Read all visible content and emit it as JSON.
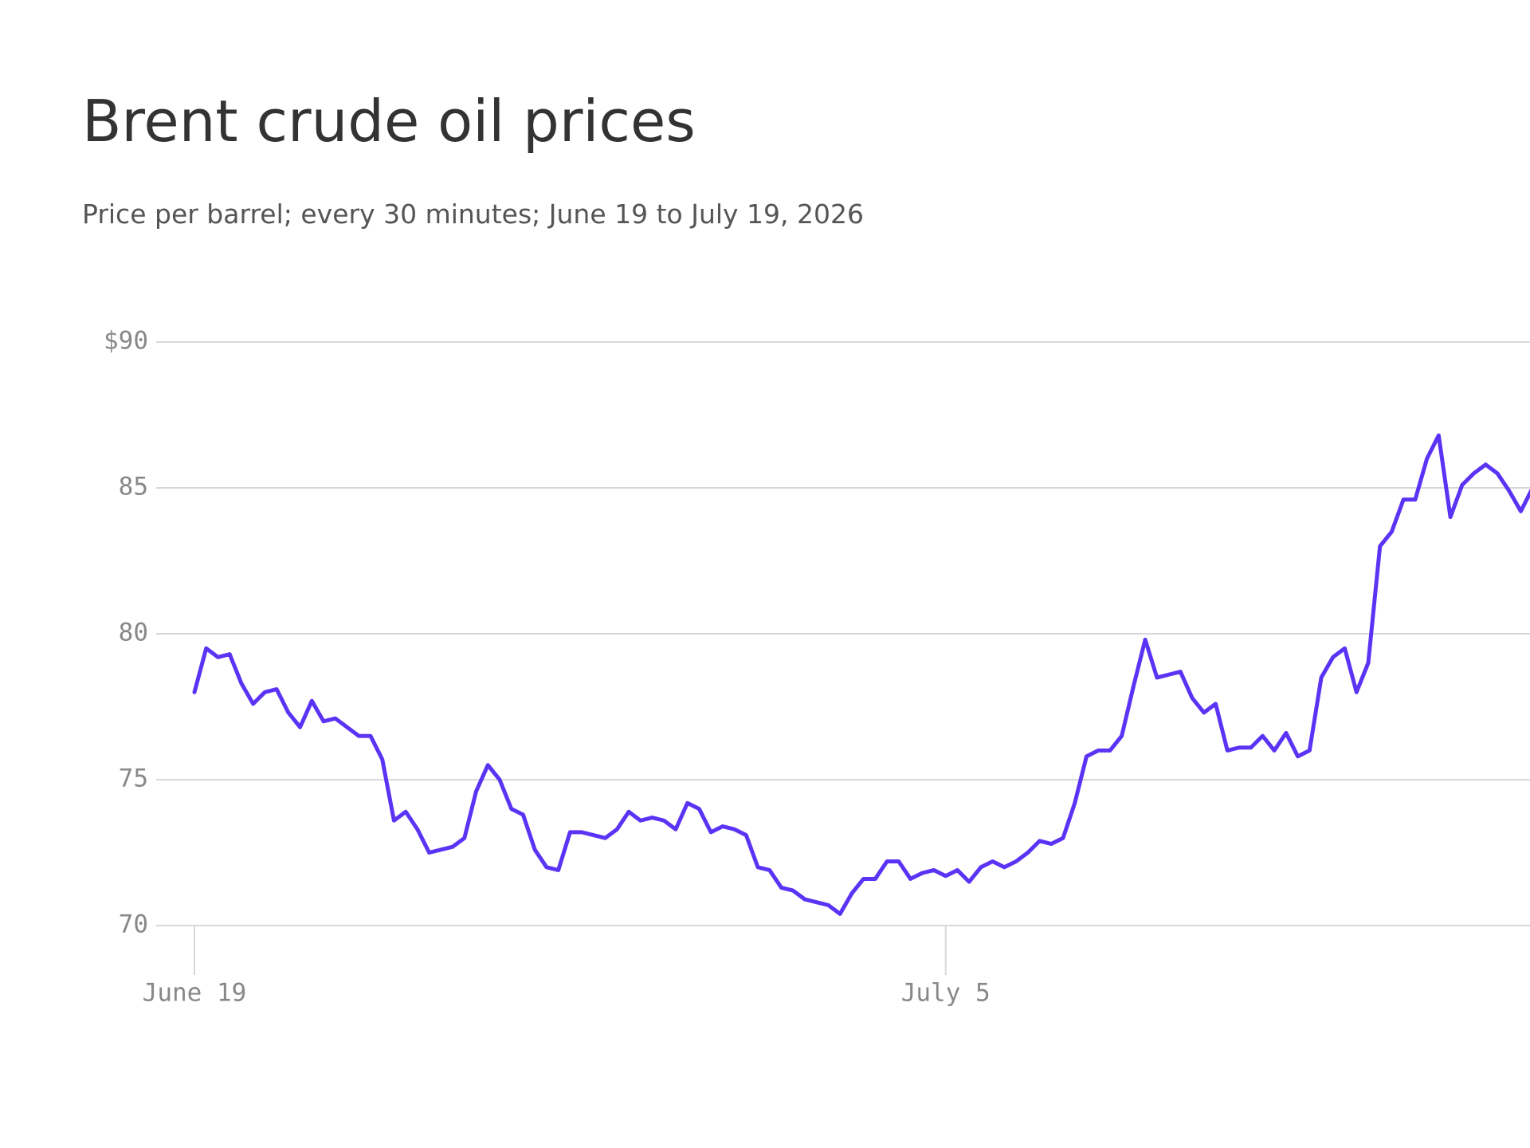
{
  "chart_data": {
    "type": "line",
    "title": "Brent crude oil prices",
    "subtitle": "Price per barrel; every 30 minutes; June 19 to July 19, 2026",
    "categories": [
      "June 19",
      null,
      null,
      null,
      null,
      null,
      null,
      null,
      null,
      null,
      null,
      null,
      null,
      null,
      null,
      null,
      null,
      null,
      null,
      null,
      null,
      null,
      null,
      null,
      null,
      null,
      null,
      null,
      null,
      null,
      null,
      null,
      null,
      null,
      null,
      null,
      null,
      null,
      null,
      null,
      null,
      null,
      null,
      null,
      null,
      null,
      null,
      null,
      null,
      null,
      null,
      null,
      null,
      null,
      null,
      null,
      null,
      null,
      null,
      null,
      null,
      null,
      null,
      null,
      "July 5",
      null,
      null,
      null,
      null,
      null,
      null,
      null,
      null,
      null,
      null,
      null,
      null,
      null,
      null,
      null,
      null,
      null,
      null,
      null,
      null,
      null,
      null,
      null,
      null,
      null,
      null,
      null,
      null,
      null,
      null,
      null,
      null,
      null,
      null,
      null,
      null,
      null,
      null,
      null,
      null,
      null,
      null,
      null,
      null,
      null,
      null,
      null,
      null,
      null,
      null
    ],
    "values": [
      78.0,
      79.5,
      79.2,
      79.3,
      78.3,
      77.6,
      78.0,
      78.1,
      77.3,
      76.8,
      77.7,
      77.0,
      77.1,
      76.8,
      76.5,
      76.5,
      75.7,
      73.6,
      73.9,
      73.3,
      72.5,
      72.6,
      72.7,
      73.0,
      74.6,
      75.5,
      75.0,
      74.0,
      73.8,
      72.6,
      72.0,
      71.9,
      73.2,
      73.2,
      73.1,
      73.0,
      73.3,
      73.9,
      73.6,
      73.7,
      73.6,
      73.3,
      74.2,
      74.0,
      73.2,
      73.4,
      73.3,
      73.1,
      72.0,
      71.9,
      71.3,
      71.2,
      70.9,
      70.8,
      70.7,
      70.4,
      71.1,
      71.6,
      71.6,
      72.2,
      72.2,
      71.6,
      71.8,
      71.9,
      71.7,
      71.9,
      71.5,
      72.0,
      72.2,
      72.0,
      72.2,
      72.5,
      72.9,
      72.8,
      73.0,
      74.2,
      75.8,
      76.0,
      76.0,
      76.5,
      78.2,
      79.8,
      78.5,
      78.6,
      78.7,
      77.8,
      77.3,
      77.6,
      76.0,
      76.1,
      76.1,
      76.5,
      76.0,
      76.6,
      75.8,
      76.0,
      78.5,
      79.2,
      79.5,
      78.0,
      79.0,
      83.0,
      83.5,
      84.6,
      84.6,
      86.0,
      86.8,
      84.0,
      85.1,
      85.5,
      85.8,
      85.5,
      84.9,
      84.2,
      85.0
    ],
    "color": "#5b33f5",
    "ylim": [
      70,
      90
    ],
    "yticks": [
      70,
      75,
      80,
      85,
      {
        "value": 90,
        "label": "$90"
      }
    ],
    "grid": true
  }
}
